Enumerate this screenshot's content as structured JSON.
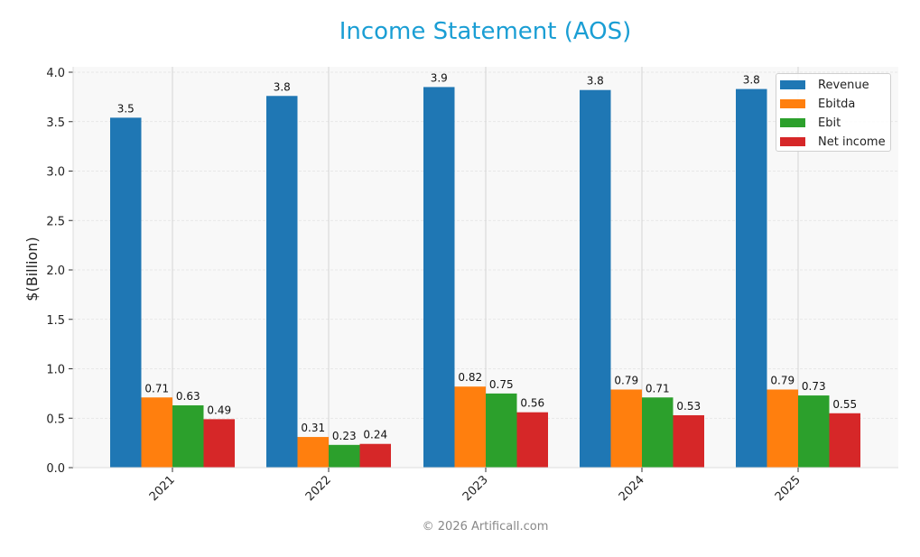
{
  "header": {
    "title": "Income Statement (AOS)"
  },
  "footer": {
    "copyright": "© 2026 Artificall.com"
  },
  "colors": {
    "title": "#1a9ed4",
    "Revenue": "#1f77b4",
    "Ebitda": "#ff7f0e",
    "Ebit": "#2ca02c",
    "Net income": "#d62728",
    "plot_bg": "#f8f8f8"
  },
  "chart_data": {
    "type": "bar",
    "title": "Income Statement (AOS)",
    "xlabel": "",
    "ylabel": "$(Billion)",
    "ylim": [
      0,
      4.0
    ],
    "yticks": [
      "0.0",
      "0.5",
      "1.0",
      "1.5",
      "2.0",
      "2.5",
      "3.0",
      "3.5",
      "4.0"
    ],
    "categories": [
      "2021",
      "2022",
      "2023",
      "2024",
      "2025"
    ],
    "series": [
      {
        "name": "Revenue",
        "values": [
          3.54,
          3.76,
          3.85,
          3.82,
          3.83
        ],
        "labels": [
          "3.5",
          "3.8",
          "3.9",
          "3.8",
          "3.8"
        ]
      },
      {
        "name": "Ebitda",
        "values": [
          0.71,
          0.31,
          0.82,
          0.79,
          0.79
        ],
        "labels": [
          "0.71",
          "0.31",
          "0.82",
          "0.79",
          "0.79"
        ]
      },
      {
        "name": "Ebit",
        "values": [
          0.63,
          0.23,
          0.75,
          0.71,
          0.73
        ],
        "labels": [
          "0.63",
          "0.23",
          "0.75",
          "0.71",
          "0.73"
        ]
      },
      {
        "name": "Net income",
        "values": [
          0.49,
          0.24,
          0.56,
          0.53,
          0.55
        ],
        "labels": [
          "0.49",
          "0.24",
          "0.56",
          "0.53",
          "0.55"
        ]
      }
    ],
    "legend": {
      "position": "upper right",
      "entries": [
        "Revenue",
        "Ebitda",
        "Ebit",
        "Net income"
      ]
    },
    "grid": true
  }
}
